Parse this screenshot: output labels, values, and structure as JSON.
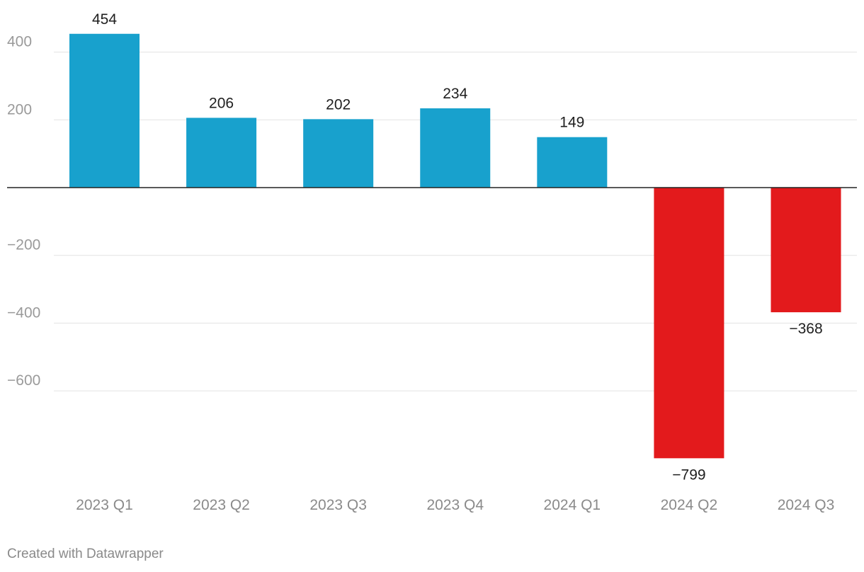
{
  "footer": "Created with Datawrapper",
  "colors": {
    "positive": "#18a1cd",
    "negative": "#e31a1c"
  },
  "chart_data": {
    "type": "bar",
    "categories": [
      "2023 Q1",
      "2023 Q2",
      "2023 Q3",
      "2023 Q4",
      "2024 Q1",
      "2024 Q2",
      "2024 Q3"
    ],
    "values": [
      454,
      206,
      202,
      234,
      149,
      -799,
      -368
    ],
    "data_labels": [
      "454",
      "206",
      "202",
      "234",
      "149",
      "−799",
      "−368"
    ],
    "y_ticks": [
      400,
      200,
      -200,
      -400,
      -600
    ],
    "y_tick_labels": [
      "400",
      "200",
      "−200",
      "−400",
      "−600"
    ],
    "ylim": [
      -840,
      480
    ],
    "grid": true,
    "legend": "none"
  }
}
